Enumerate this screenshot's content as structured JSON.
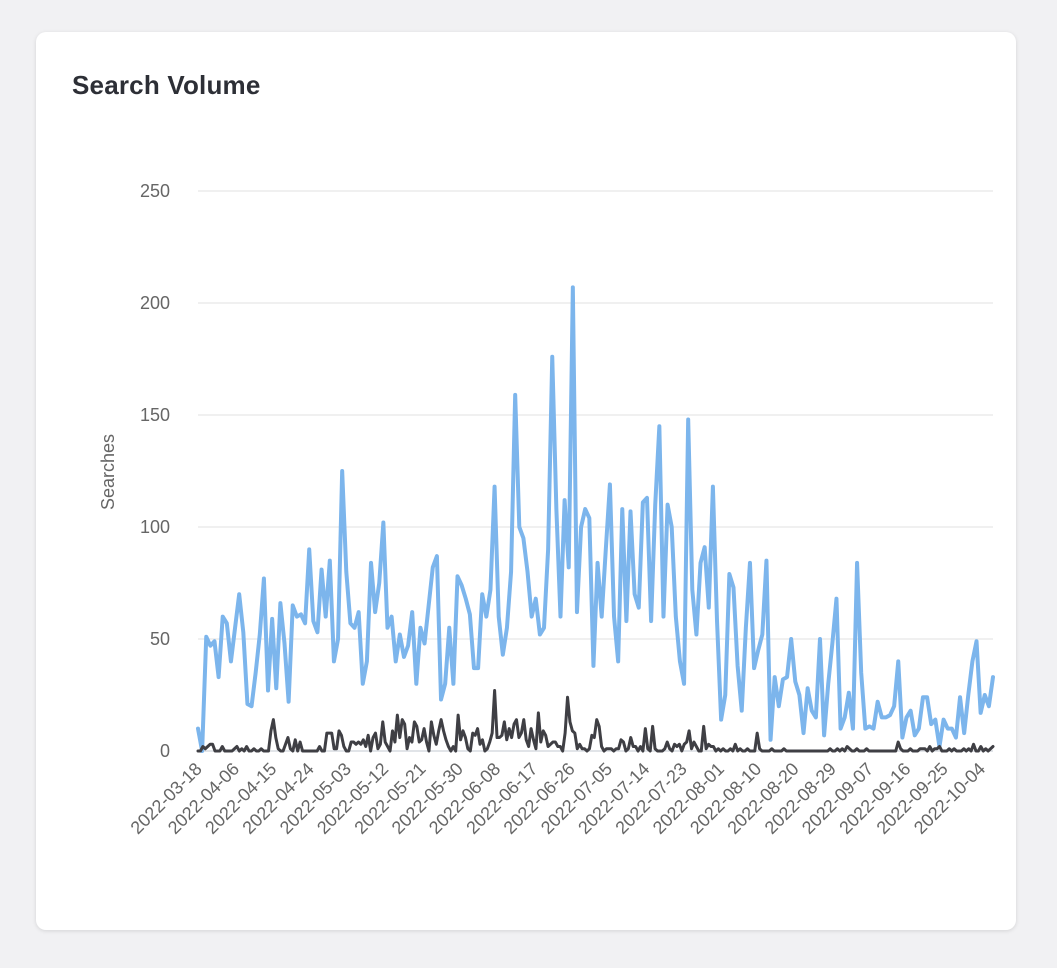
{
  "card": {
    "title": "Search Volume"
  },
  "chart_data": {
    "type": "line",
    "title": "Search Volume",
    "xlabel": "",
    "ylabel": "Searches",
    "ylim": [
      0,
      250
    ],
    "yticks": [
      0,
      50,
      100,
      150,
      200,
      250
    ],
    "grid": true,
    "xtick_labels": [
      "2022-03-18",
      "2022-04-06",
      "2022-04-15",
      "2022-04-24",
      "2022-05-03",
      "2022-05-12",
      "2022-05-21",
      "2022-05-30",
      "2022-06-08",
      "2022-06-17",
      "2022-06-26",
      "2022-07-05",
      "2022-07-14",
      "2022-07-23",
      "2022-08-01",
      "2022-08-10",
      "2022-08-20",
      "2022-08-29",
      "2022-09-07",
      "2022-09-16",
      "2022-09-25",
      "2022-10-04",
      "2022-10",
      "202"
    ],
    "series": [
      {
        "name": "searches",
        "color": "#7cb5ec",
        "values": [
          10,
          0,
          51,
          47,
          49,
          33,
          60,
          57,
          40,
          55,
          70,
          53,
          21,
          20,
          35,
          52,
          77,
          27,
          59,
          28,
          66,
          48,
          22,
          65,
          60,
          61,
          57,
          90,
          58,
          53,
          81,
          60,
          85,
          40,
          50,
          125,
          80,
          57,
          55,
          62,
          30,
          40,
          84,
          62,
          75,
          102,
          55,
          60,
          40,
          52,
          42,
          47,
          62,
          30,
          55,
          48,
          65,
          82,
          87,
          23,
          30,
          55,
          30,
          78,
          74,
          68,
          61,
          37,
          37,
          70,
          60,
          72,
          118,
          60,
          43,
          55,
          80,
          159,
          100,
          95,
          80,
          60,
          68,
          52,
          55,
          90,
          176,
          108,
          60,
          112,
          82,
          207,
          62,
          100,
          108,
          104,
          38,
          84,
          60,
          90,
          119,
          60,
          40,
          108,
          58,
          107,
          70,
          64,
          111,
          113,
          58,
          110,
          145,
          60,
          110,
          100,
          60,
          40,
          30,
          148,
          72,
          52,
          84,
          91,
          64,
          118,
          58,
          14,
          25,
          79,
          73,
          38,
          18,
          55,
          84,
          37,
          45,
          52,
          85,
          5,
          33,
          20,
          32,
          33,
          50,
          31,
          25,
          8,
          28,
          18,
          15,
          50,
          7,
          30,
          48,
          68,
          10,
          15,
          26,
          10,
          84,
          35,
          10,
          11,
          10,
          22,
          15,
          15,
          16,
          20,
          40,
          6,
          15,
          18,
          7,
          10,
          24,
          24,
          12,
          14,
          2,
          14,
          10,
          10,
          6,
          24,
          8,
          25,
          40,
          49,
          17,
          25,
          20,
          33
        ],
        "sparse": true
      },
      {
        "name": "secondary",
        "color": "#3f3f44",
        "values": [
          0,
          0,
          2,
          1,
          2,
          3,
          3,
          0,
          0,
          0,
          2,
          0,
          0,
          0,
          0,
          1,
          2,
          0,
          1,
          0,
          2,
          0,
          0,
          1,
          0,
          0,
          1,
          0,
          0,
          0,
          9,
          14,
          6,
          1,
          0,
          0,
          3,
          6,
          1,
          0,
          5,
          0,
          4,
          0,
          0,
          0,
          0,
          0,
          0,
          0,
          2,
          0,
          0,
          8,
          8,
          8,
          1,
          1,
          9,
          7,
          2,
          0,
          0,
          4,
          4,
          3,
          4,
          3,
          5,
          2,
          7,
          0,
          6,
          8,
          1,
          3,
          13,
          4,
          2,
          0,
          9,
          4,
          16,
          6,
          14,
          12,
          1,
          6,
          4,
          13,
          11,
          4,
          5,
          10,
          4,
          0,
          13,
          7,
          3,
          9,
          14,
          9,
          5,
          2,
          0,
          2,
          0,
          16,
          5,
          9,
          6,
          1,
          0,
          8,
          7,
          10,
          3,
          5,
          0,
          1,
          4,
          8,
          27,
          6,
          6,
          7,
          13,
          5,
          10,
          6,
          12,
          14,
          6,
          8,
          14,
          5,
          2,
          10,
          5,
          1,
          17,
          4,
          9,
          7,
          2,
          3,
          4,
          4,
          2,
          2,
          0,
          8,
          24,
          13,
          9,
          8,
          1,
          3,
          1,
          1,
          0,
          1,
          7,
          6,
          14,
          11,
          2,
          0,
          1,
          1,
          1,
          0,
          1,
          1,
          5,
          4,
          0,
          1,
          6,
          2,
          2,
          0,
          2,
          0,
          10,
          1,
          0,
          11,
          1,
          0,
          0,
          0,
          1,
          4,
          1,
          0,
          3,
          2,
          3,
          0,
          3,
          4,
          9,
          1,
          4,
          2,
          0,
          0,
          11,
          1,
          3,
          2,
          2,
          0,
          1,
          0,
          1,
          0,
          0,
          1,
          0,
          3,
          0,
          1,
          0,
          0,
          1,
          0,
          0,
          0,
          8,
          1,
          0,
          0,
          0,
          0,
          1,
          0,
          0,
          0,
          0,
          1,
          0,
          0,
          0,
          0,
          0,
          0,
          0,
          0,
          0,
          0,
          0,
          0,
          0,
          0,
          0,
          0,
          0,
          0,
          1,
          0,
          0,
          1,
          0,
          1,
          0,
          2,
          1,
          0,
          0,
          1,
          0,
          0,
          0,
          1,
          0,
          0,
          0,
          0,
          0,
          0,
          0,
          0,
          0,
          0,
          0,
          0,
          4,
          1,
          0,
          0,
          0,
          1,
          0,
          0,
          0,
          1,
          1,
          1,
          0,
          2,
          0,
          1,
          1,
          2,
          0,
          0,
          0,
          1,
          0,
          1,
          0,
          0,
          0,
          1,
          0,
          1,
          0,
          3,
          0,
          0,
          2,
          0,
          1,
          0,
          1,
          2
        ],
        "sparse": true
      }
    ]
  }
}
